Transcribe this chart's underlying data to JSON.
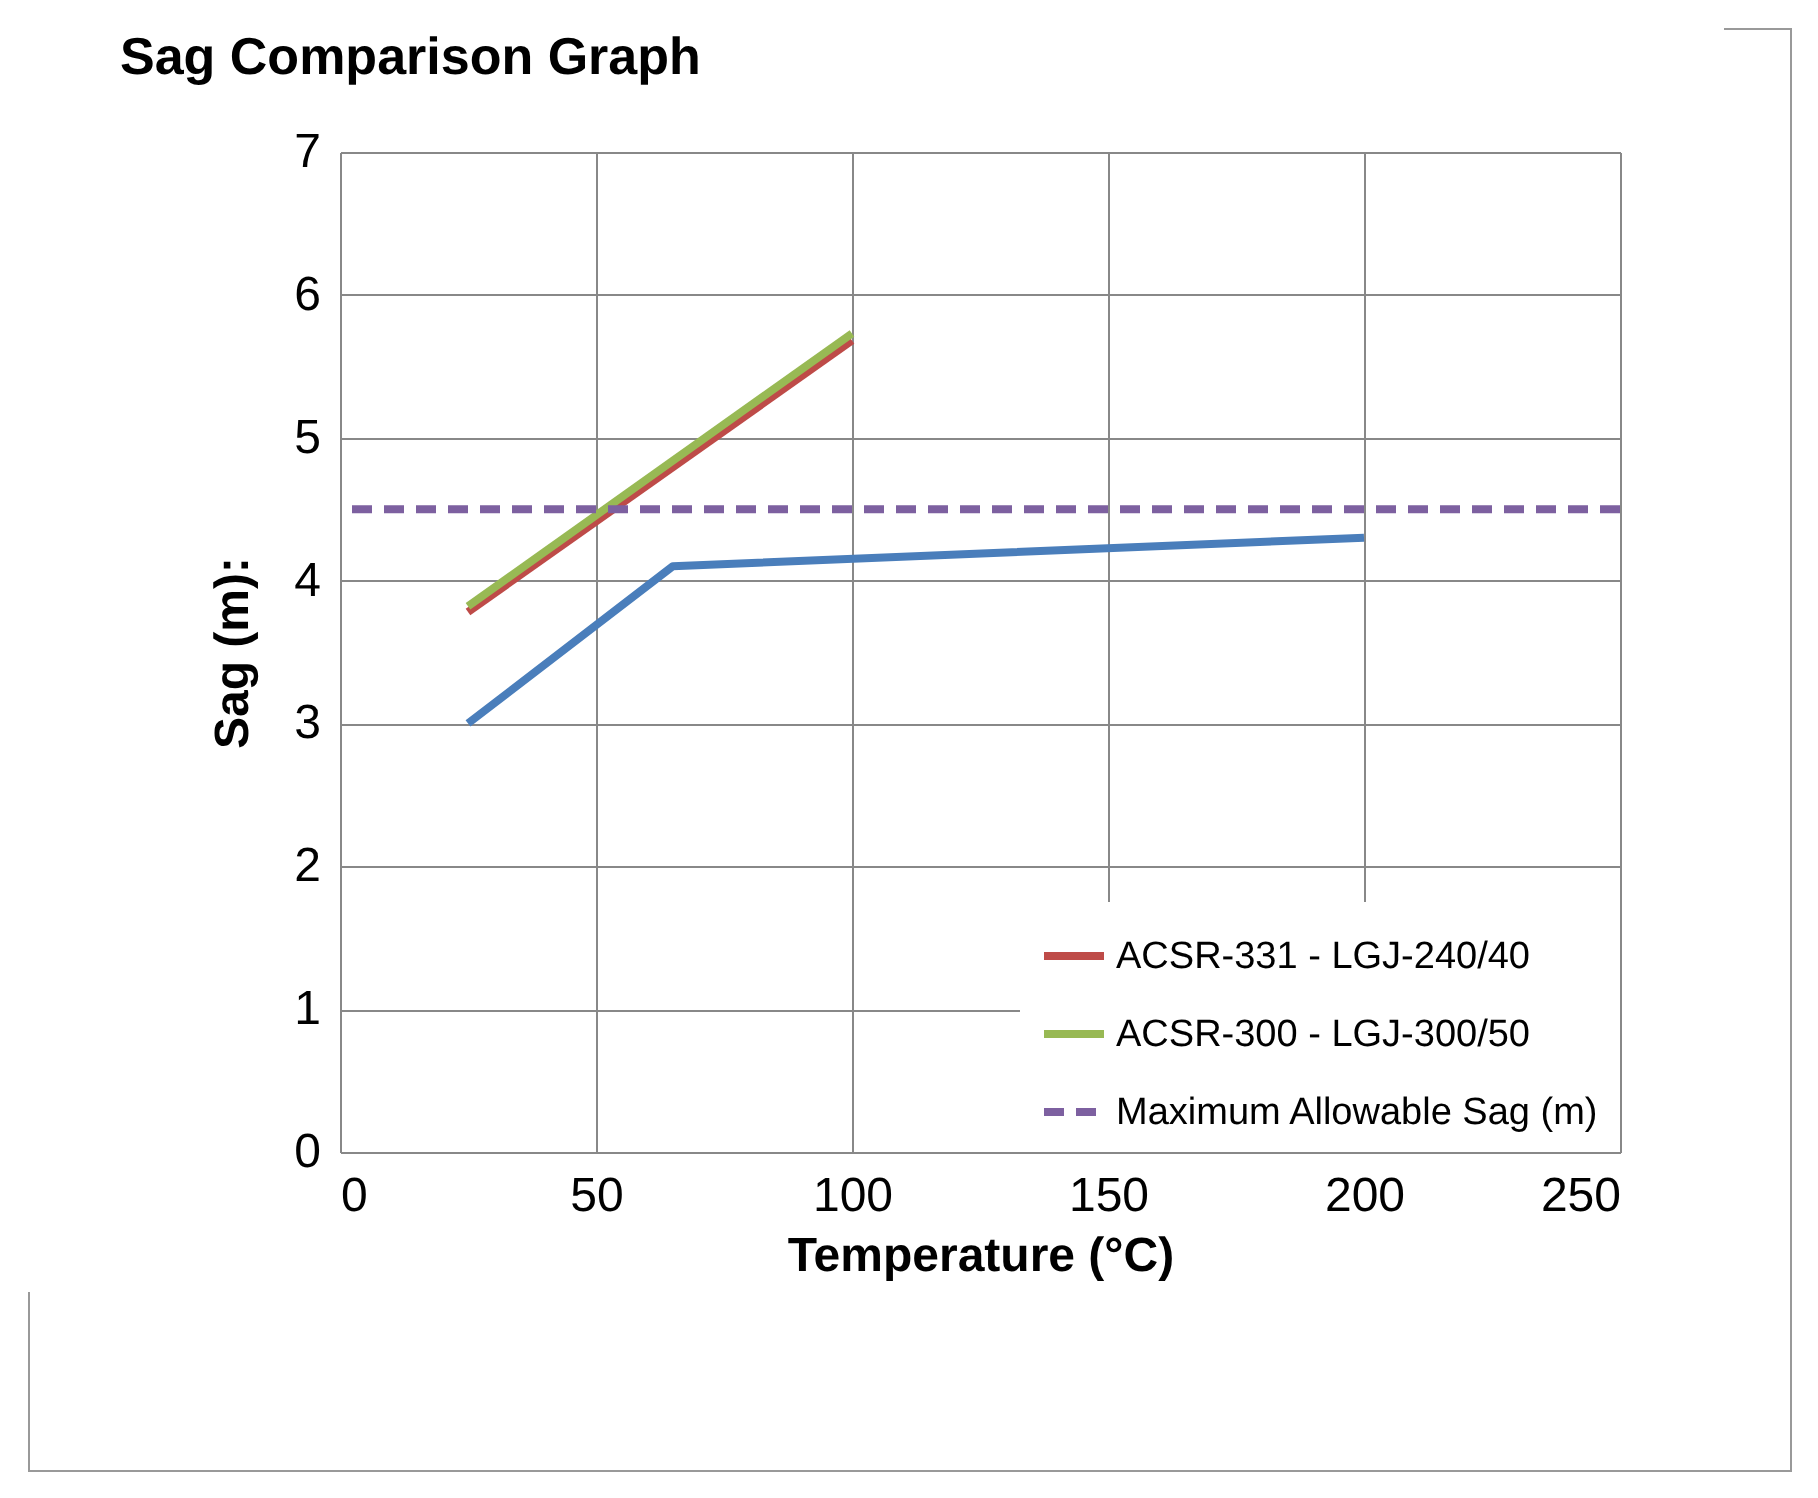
{
  "chart_data": {
    "type": "line",
    "title": "Sag Comparison Graph",
    "xlabel": "Temperature (°C)",
    "ylabel": "Sag (m):",
    "series": [
      {
        "color": "#4a7ebb",
        "x": [
          25,
          65,
          200
        ],
        "values": [
          3.0,
          4.1,
          4.3
        ]
      },
      {
        "name": "ACSR-331 - LGJ-240/40",
        "color": "#be4b48",
        "x": [
          25,
          100
        ],
        "values": [
          3.78,
          5.68
        ]
      },
      {
        "name": "ACSR-300 - LGJ-300/50",
        "color": "#98b954",
        "x": [
          25,
          100
        ],
        "values": [
          3.82,
          5.73
        ]
      }
    ],
    "ref_lines": [
      {
        "axis": "y",
        "value": 4.5,
        "label": "Maximum Allowable Sag (m)",
        "color": "#7d60a0",
        "line_style": "dashed"
      }
    ],
    "xlim": [
      0,
      250
    ],
    "xticks": [
      0,
      50,
      100,
      150,
      200,
      250
    ],
    "ylim": [
      0,
      7
    ],
    "yticks": [
      0,
      1,
      2,
      3,
      4,
      5,
      6,
      7
    ],
    "grid": true,
    "legend": "bottom right",
    "marker": "none"
  }
}
